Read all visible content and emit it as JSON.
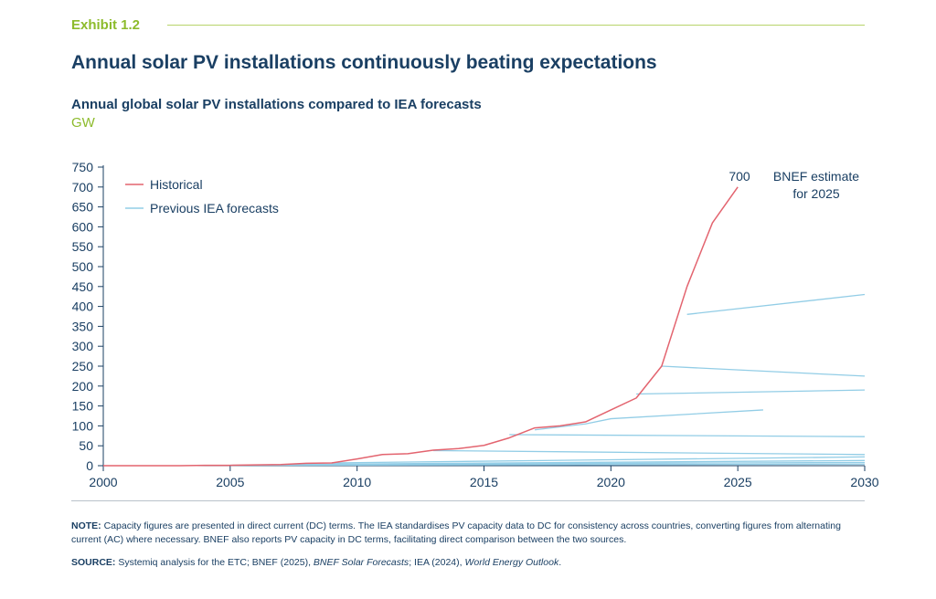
{
  "header": {
    "exhibit": "Exhibit 1.2",
    "headline": "Annual solar PV installations continuously beating expectations",
    "subtitle": "Annual global solar PV installations compared to IEA forecasts",
    "unit": "GW"
  },
  "chart_data": {
    "type": "line",
    "xlim": [
      2000,
      2030
    ],
    "ylim": [
      0,
      750
    ],
    "x_ticks": [
      "2000",
      "2005",
      "2010",
      "2015",
      "2020",
      "2025",
      "2030"
    ],
    "y_ticks": [
      "750",
      "700",
      "650",
      "600",
      "550",
      "500",
      "450",
      "400",
      "350",
      "300",
      "250",
      "200",
      "150",
      "100",
      "50",
      "0"
    ],
    "grid": false,
    "legend_position": "top-left",
    "colors": {
      "historical": "#e3646f",
      "forecast": "#92cde6",
      "text": "#1a3f63"
    },
    "series": [
      {
        "name": "Historical",
        "x": [
          2000,
          2001,
          2002,
          2003,
          2004,
          2005,
          2006,
          2007,
          2008,
          2009,
          2010,
          2011,
          2012,
          2013,
          2014,
          2015,
          2016,
          2017,
          2018,
          2019,
          2020,
          2021,
          2022,
          2023,
          2024,
          2025
        ],
        "y": [
          0,
          0,
          0,
          0,
          1,
          1,
          2,
          3,
          6,
          7,
          17,
          28,
          30,
          39,
          43,
          51,
          70,
          95,
          100,
          110,
          140,
          170,
          250,
          450,
          610,
          700
        ]
      }
    ],
    "forecasts_name": "Previous IEA forecasts",
    "forecasts": [
      {
        "x": [
          2023,
          2030
        ],
        "y": [
          380,
          430
        ]
      },
      {
        "x": [
          2022,
          2030
        ],
        "y": [
          250,
          225
        ]
      },
      {
        "x": [
          2021,
          2030
        ],
        "y": [
          180,
          190
        ]
      },
      {
        "x": [
          2017,
          2019,
          2020,
          2026
        ],
        "y": [
          90,
          105,
          118,
          140
        ]
      },
      {
        "x": [
          2016,
          2030
        ],
        "y": [
          78,
          73
        ]
      },
      {
        "x": [
          2013,
          2030
        ],
        "y": [
          38,
          28
        ]
      },
      {
        "x": [
          2009,
          2030
        ],
        "y": [
          7,
          22
        ]
      },
      {
        "x": [
          2009,
          2030
        ],
        "y": [
          4,
          13
        ]
      },
      {
        "x": [
          2007,
          2030
        ],
        "y": [
          3,
          8
        ]
      },
      {
        "x": [
          2005,
          2030
        ],
        "y": [
          1,
          4
        ]
      }
    ],
    "annotations": [
      {
        "label": "700"
      },
      {
        "label": "BNEF estimate\nfor 2025"
      }
    ]
  },
  "footnote": {
    "note_label": "NOTE:",
    "note_text": " Capacity figures are presented in direct current (DC) terms. The IEA standardises PV capacity data to DC for consistency across countries, converting figures from alternating current (AC) where necessary. BNEF also reports PV capacity in DC terms, facilitating direct comparison between the two sources.",
    "source_label": "SOURCE:",
    "source_text_1": " Systemiq analysis for the ETC; BNEF (2025), ",
    "source_italic_1": "BNEF Solar Forecasts",
    "source_text_2": "; IEA (2024), ",
    "source_italic_2": "World Energy Outlook",
    "source_text_3": "."
  }
}
